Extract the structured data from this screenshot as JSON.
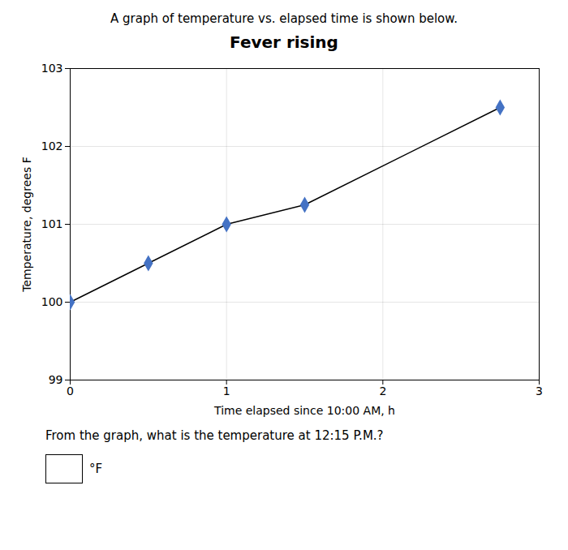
{
  "chart_data": {
    "type": "line",
    "title": "Fever rising",
    "subtitle": "A graph of temperature vs. elapsed time is shown below.",
    "xlabel": "Time elapsed since 10:00 AM, h",
    "ylabel": "Temperature, degrees F",
    "x": [
      0,
      0.5,
      1.0,
      1.5,
      2.75
    ],
    "values": [
      100.0,
      100.5,
      101.0,
      101.25,
      102.5
    ],
    "xlim": [
      0,
      3
    ],
    "ylim": [
      99,
      103
    ],
    "xticks": [
      0,
      1,
      2,
      3
    ],
    "yticks": [
      99,
      100,
      101,
      102,
      103
    ],
    "color": "#4472C4",
    "marker": "diamond",
    "grid": true,
    "annotations": [
      "From the graph, what is the temperature at 12:15 P.M.?",
      "°F"
    ]
  }
}
